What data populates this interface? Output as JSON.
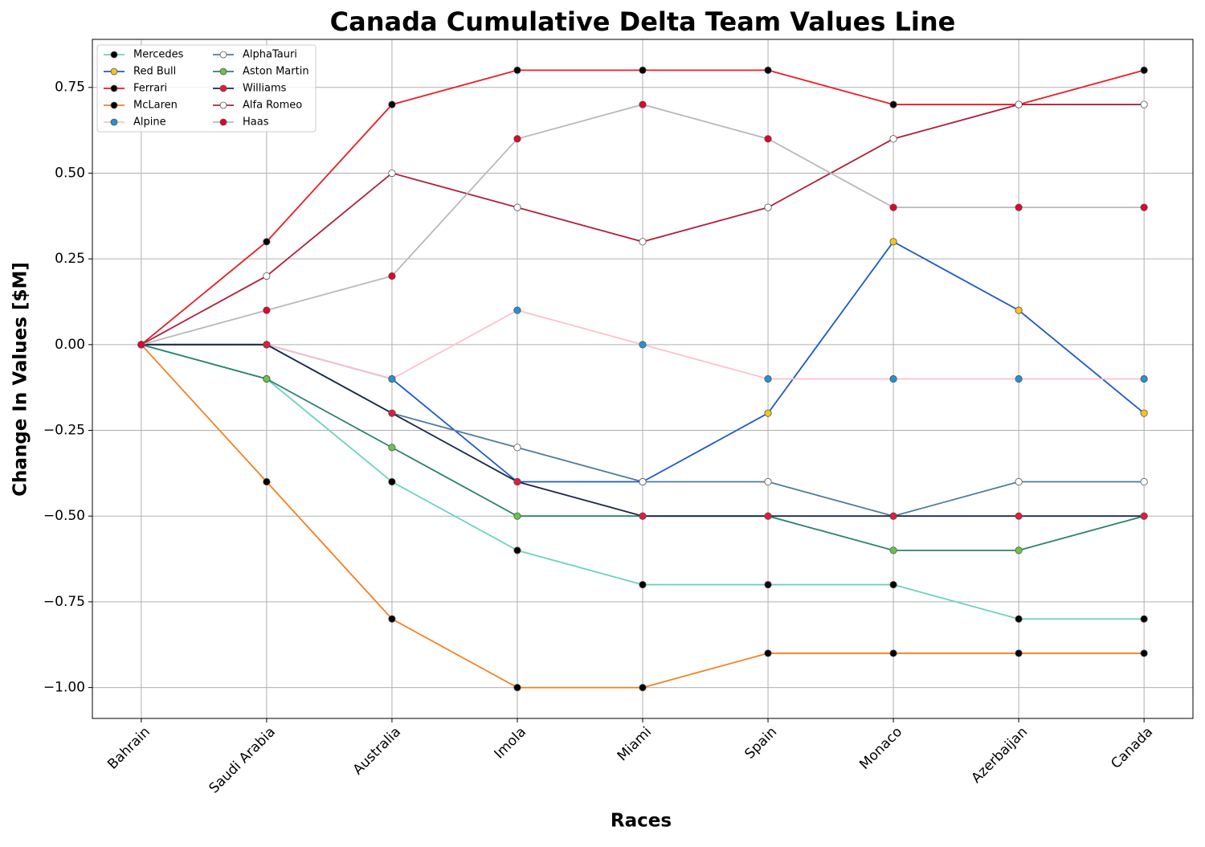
{
  "chart_data": {
    "type": "line",
    "title": "Canada Cumulative Delta Team Values Line",
    "x_label": "Races",
    "y_label": "Change In Values [$M]",
    "categories": [
      "Bahrain",
      "Saudi Arabia",
      "Australia",
      "Imola",
      "Miami",
      "Spain",
      "Monaco",
      "Azerbaijan",
      "Canada"
    ],
    "series": [
      {
        "name": "Mercedes",
        "color": "#6cd3bf",
        "marker_color": "#000000",
        "values": [
          0,
          -0.1,
          -0.4,
          -0.6,
          -0.7,
          -0.7,
          -0.7,
          -0.8,
          -0.8
        ]
      },
      {
        "name": "Red Bull",
        "color": "#1e5bc6",
        "marker_color": "#f5c518",
        "values": [
          0,
          0,
          -0.1,
          -0.4,
          -0.4,
          -0.2,
          0.3,
          0.1,
          -0.2
        ]
      },
      {
        "name": "Ferrari",
        "color": "#ed1c24",
        "marker_color": "#000000",
        "values": [
          0,
          0.3,
          0.7,
          0.8,
          0.8,
          0.8,
          0.7,
          0.7,
          0.8
        ]
      },
      {
        "name": "McLaren",
        "color": "#f58020",
        "marker_color": "#000000",
        "values": [
          0,
          -0.4,
          -0.8,
          -1.0,
          -1.0,
          -0.9,
          -0.9,
          -0.9,
          -0.9
        ]
      },
      {
        "name": "Alpine",
        "color": "#ffc0cb",
        "marker_color": "#2293d1",
        "values": [
          0,
          0,
          -0.1,
          0.1,
          0,
          -0.1,
          -0.1,
          -0.1,
          -0.1
        ]
      },
      {
        "name": "AlphaTauri",
        "color": "#4e7c9b",
        "marker_color": "#ffffff",
        "values": [
          0,
          0,
          -0.2,
          -0.3,
          -0.4,
          -0.4,
          -0.5,
          -0.4,
          -0.4
        ]
      },
      {
        "name": "Aston Martin",
        "color": "#2d826d",
        "marker_color": "#6cc24a",
        "values": [
          0,
          -0.1,
          -0.3,
          -0.5,
          -0.5,
          -0.5,
          -0.6,
          -0.6,
          -0.5
        ]
      },
      {
        "name": "Williams",
        "color": "#1a2a48",
        "marker_color": "#e8193c",
        "values": [
          0,
          0,
          -0.2,
          -0.4,
          -0.5,
          -0.5,
          -0.5,
          -0.5,
          -0.5
        ]
      },
      {
        "name": "Alfa Romeo",
        "color": "#b12039",
        "marker_color": "#ffffff",
        "values": [
          0,
          0.2,
          0.5,
          0.4,
          0.3,
          0.4,
          0.6,
          0.7,
          0.7
        ]
      },
      {
        "name": "Haas",
        "color": "#b6babd",
        "marker_color": "#e6002b",
        "values": [
          0,
          0.1,
          0.2,
          0.6,
          0.7,
          0.6,
          0.4,
          0.4,
          0.4
        ]
      }
    ],
    "ylim": [
      -1.09,
      0.89
    ],
    "yticks": [
      {
        "value": -1.0,
        "label": "−1.00"
      },
      {
        "value": -0.75,
        "label": "−0.75"
      },
      {
        "value": -0.5,
        "label": "−0.50"
      },
      {
        "value": -0.25,
        "label": "−0.25"
      },
      {
        "value": 0,
        "label": "0.00"
      },
      {
        "value": 0.25,
        "label": "0.25"
      },
      {
        "value": 0.5,
        "label": "0.50"
      },
      {
        "value": 0.75,
        "label": "0.75"
      }
    ],
    "grid": true,
    "legend": "upper left"
  }
}
